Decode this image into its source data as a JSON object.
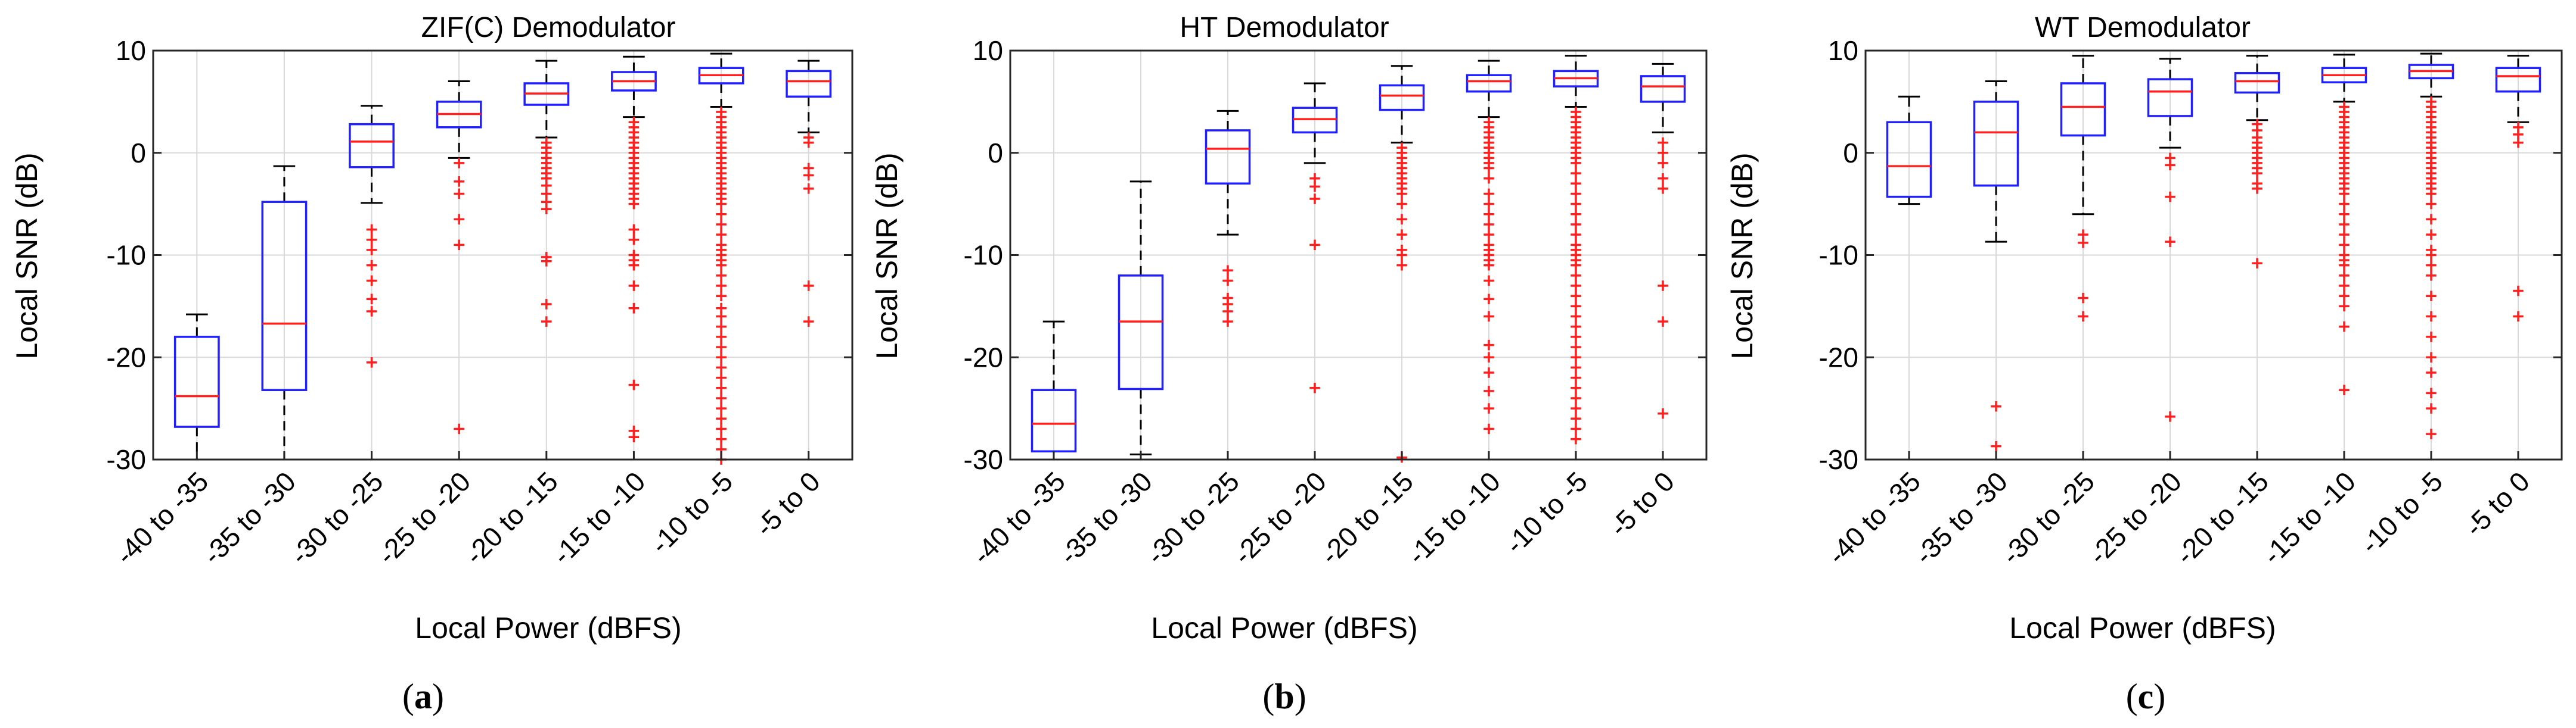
{
  "chart_data": [
    {
      "type": "boxplot",
      "title": "ZIF(C) Demodulator",
      "caption": "(a)",
      "caption_letter": "a",
      "xlabel": "Local Power (dBFS)",
      "ylabel": "Local SNR (dB)",
      "ylim": [
        -30,
        10
      ],
      "yticks": [
        -30,
        -20,
        -10,
        0,
        10
      ],
      "grid": true,
      "categories": [
        "-40 to -35",
        "-35 to -30",
        "-30 to -25",
        "-25 to -20",
        "-20 to -15",
        "-15 to -10",
        "-10 to -5",
        "-5 to 0"
      ],
      "boxes": [
        {
          "whisker_low": -30,
          "q1": -26.8,
          "median": -23.8,
          "q3": -18,
          "whisker_high": -15.8,
          "outliers": []
        },
        {
          "whisker_low": -30,
          "q1": -23.2,
          "median": -16.7,
          "q3": -4.8,
          "whisker_high": -1.3,
          "outliers": []
        },
        {
          "whisker_low": -4.9,
          "q1": -1.4,
          "median": 1.1,
          "q3": 2.8,
          "whisker_high": 4.6,
          "outliers": [
            -7.5,
            -8.5,
            -9.5,
            -11,
            -12.5,
            -14.3,
            -15.5,
            -20.5
          ]
        },
        {
          "whisker_low": -0.5,
          "q1": 2.5,
          "median": 3.8,
          "q3": 5,
          "whisker_high": 7,
          "outliers": [
            -1,
            -2.8,
            -4,
            -6.5,
            -9,
            -27
          ]
        },
        {
          "whisker_low": 1.5,
          "q1": 4.7,
          "median": 5.8,
          "q3": 6.8,
          "whisker_high": 9,
          "outliers": [
            1,
            0.5,
            0,
            -0.5,
            -1,
            -1.5,
            -2,
            -2.5,
            -3.2,
            -4,
            -4.8,
            -5.5,
            -10.2,
            -10.6,
            -14.8,
            -16.5
          ]
        },
        {
          "whisker_low": 3.5,
          "q1": 6.1,
          "median": 7,
          "q3": 7.9,
          "whisker_high": 9.4,
          "outliers": [
            3,
            2.5,
            2,
            1.5,
            1,
            0.5,
            0,
            -0.5,
            -1,
            -1.5,
            -2,
            -2.5,
            -3,
            -3.5,
            -4,
            -4.5,
            -5,
            -7.5,
            -8.5,
            -10,
            -10.5,
            -11,
            -13,
            -15.2,
            -22.7,
            -27.2,
            -27.8
          ]
        },
        {
          "whisker_low": 4.5,
          "q1": 6.8,
          "median": 7.6,
          "q3": 8.3,
          "whisker_high": 9.7,
          "outliers": [
            4,
            3.5,
            3,
            2.5,
            2,
            1.5,
            1,
            0.5,
            0,
            -0.5,
            -1,
            -1.5,
            -2,
            -2.5,
            -3,
            -3.5,
            -4,
            -4.5,
            -5,
            -6,
            -7,
            -8,
            -9,
            -9.5,
            -10,
            -10.5,
            -11,
            -12,
            -13,
            -14,
            -15.2,
            -16,
            -17,
            -18,
            -19,
            -20,
            -21,
            -22,
            -23,
            -24,
            -25,
            -26,
            -27,
            -28,
            -29,
            -30
          ]
        },
        {
          "whisker_low": 2,
          "q1": 5.5,
          "median": 7,
          "q3": 8,
          "whisker_high": 9,
          "outliers": [
            1.5,
            1,
            -1.5,
            -2.2,
            -3.5,
            -13,
            -16.5
          ]
        }
      ]
    },
    {
      "type": "boxplot",
      "title": "HT Demodulator",
      "caption": "(b)",
      "caption_letter": "b",
      "xlabel": "Local Power (dBFS)",
      "ylabel": "Local SNR (dB)",
      "ylim": [
        -30,
        10
      ],
      "yticks": [
        -30,
        -20,
        -10,
        0,
        10
      ],
      "grid": true,
      "categories": [
        "-40 to -35",
        "-35 to -30",
        "-30 to -25",
        "-25 to -20",
        "-20 to -15",
        "-15 to -10",
        "-10 to -5",
        "-5 to 0"
      ],
      "boxes": [
        {
          "whisker_low": -30,
          "q1": -29.2,
          "median": -26.5,
          "q3": -23.2,
          "whisker_high": -16.5,
          "outliers": []
        },
        {
          "whisker_low": -29.5,
          "q1": -23.1,
          "median": -16.5,
          "q3": -12,
          "whisker_high": -2.8,
          "outliers": []
        },
        {
          "whisker_low": -8,
          "q1": -3,
          "median": 0.4,
          "q3": 2.2,
          "whisker_high": 4.1,
          "outliers": [
            -11.5,
            -12.5,
            -14.2,
            -14.8,
            -15.5,
            -16.5
          ]
        },
        {
          "whisker_low": -1,
          "q1": 2,
          "median": 3.3,
          "q3": 4.4,
          "whisker_high": 6.8,
          "outliers": [
            -2.5,
            -3.3,
            -4.5,
            -9,
            -23
          ]
        },
        {
          "whisker_low": 1,
          "q1": 4.2,
          "median": 5.6,
          "q3": 6.6,
          "whisker_high": 8.5,
          "outliers": [
            0.5,
            0,
            -0.5,
            -1,
            -1.5,
            -2,
            -2.5,
            -3,
            -3.5,
            -4,
            -5,
            -6.5,
            -8,
            -9.5,
            -10,
            -11,
            -29.8
          ]
        },
        {
          "whisker_low": 3.5,
          "q1": 6,
          "median": 7,
          "q3": 7.6,
          "whisker_high": 9,
          "outliers": [
            3,
            2.5,
            2,
            1.5,
            1,
            0.5,
            0,
            -0.5,
            -1,
            -1.5,
            -2.5,
            -4,
            -5,
            -6,
            -7,
            -8,
            -9,
            -9.5,
            -10,
            -10.5,
            -11,
            -12.5,
            -14.3,
            -16,
            -18.8,
            -20,
            -21.5,
            -23.3,
            -25,
            -27
          ]
        },
        {
          "whisker_low": 4.5,
          "q1": 6.5,
          "median": 7.3,
          "q3": 8,
          "whisker_high": 9.5,
          "outliers": [
            4,
            3.5,
            3,
            2.5,
            2,
            1.5,
            1,
            0.5,
            0,
            -0.5,
            -1,
            -2,
            -3,
            -4,
            -5,
            -6,
            -7,
            -8,
            -9,
            -9.5,
            -10,
            -10.5,
            -11,
            -12,
            -13,
            -14,
            -15,
            -16,
            -17,
            -18,
            -19,
            -20,
            -21,
            -22,
            -23,
            -24,
            -25,
            -26,
            -27,
            -28
          ]
        },
        {
          "whisker_low": 2,
          "q1": 5,
          "median": 6.5,
          "q3": 7.5,
          "whisker_high": 8.7,
          "outliers": [
            1,
            0,
            -1,
            -2.5,
            -3.5,
            -13,
            -16.5,
            -25.5
          ]
        }
      ]
    },
    {
      "type": "boxplot",
      "title": "WT Demodulator",
      "caption": "(c)",
      "caption_letter": "c",
      "xlabel": "Local Power (dBFS)",
      "ylabel": "Local SNR (dB)",
      "ylim": [
        -30,
        10
      ],
      "yticks": [
        -30,
        -20,
        -10,
        0,
        10
      ],
      "grid": true,
      "categories": [
        "-40 to -35",
        "-35 to -30",
        "-30 to -25",
        "-25 to -20",
        "-20 to -15",
        "-15 to -10",
        "-10 to -5",
        "-5 to 0"
      ],
      "boxes": [
        {
          "whisker_low": -5,
          "q1": -4.3,
          "median": -1.3,
          "q3": 3,
          "whisker_high": 5.5,
          "outliers": []
        },
        {
          "whisker_low": -8.7,
          "q1": -3.2,
          "median": 2,
          "q3": 5,
          "whisker_high": 7,
          "outliers": [
            -24.8,
            -28.7
          ]
        },
        {
          "whisker_low": -6,
          "q1": 1.7,
          "median": 4.5,
          "q3": 6.8,
          "whisker_high": 9.5,
          "outliers": [
            -8,
            -8.8,
            -14.2,
            -16
          ]
        },
        {
          "whisker_low": 0.5,
          "q1": 3.6,
          "median": 6,
          "q3": 7.2,
          "whisker_high": 9.2,
          "outliers": [
            -0.5,
            -1.2,
            -4.3,
            -8.7,
            -25.8
          ]
        },
        {
          "whisker_low": 3.2,
          "q1": 5.9,
          "median": 7,
          "q3": 7.8,
          "whisker_high": 9.5,
          "outliers": [
            2.8,
            2.2,
            1.5,
            1,
            0.5,
            0,
            -0.5,
            -1,
            -1.5,
            -2,
            -3,
            -3.5,
            -10.8
          ]
        },
        {
          "whisker_low": 5,
          "q1": 6.9,
          "median": 7.6,
          "q3": 8.3,
          "whisker_high": 9.6,
          "outliers": [
            4.5,
            4,
            3.5,
            3,
            2.5,
            2,
            1.5,
            1,
            0.5,
            0,
            -0.5,
            -1,
            -1.5,
            -2,
            -2.5,
            -3,
            -3.5,
            -4,
            -5,
            -6,
            -7,
            -8,
            -9,
            -10,
            -10.5,
            -11,
            -12,
            -13,
            -14,
            -15,
            -17,
            -23.2
          ]
        },
        {
          "whisker_low": 5.5,
          "q1": 7.3,
          "median": 8,
          "q3": 8.6,
          "whisker_high": 9.7,
          "outliers": [
            5,
            4.5,
            4,
            3.5,
            3,
            2.5,
            2,
            1.5,
            1,
            0.5,
            0,
            -0.5,
            -1,
            -1.5,
            -2,
            -2.5,
            -3,
            -3.5,
            -4,
            -5,
            -6.5,
            -8,
            -9.5,
            -10,
            -11,
            -12,
            -14,
            -16,
            -18,
            -20,
            -21.5,
            -23.5,
            -25,
            -27.5
          ]
        },
        {
          "whisker_low": 3,
          "q1": 6,
          "median": 7.5,
          "q3": 8.3,
          "whisker_high": 9.5,
          "outliers": [
            2.5,
            1.8,
            1,
            -13.5,
            -16
          ]
        }
      ]
    }
  ]
}
